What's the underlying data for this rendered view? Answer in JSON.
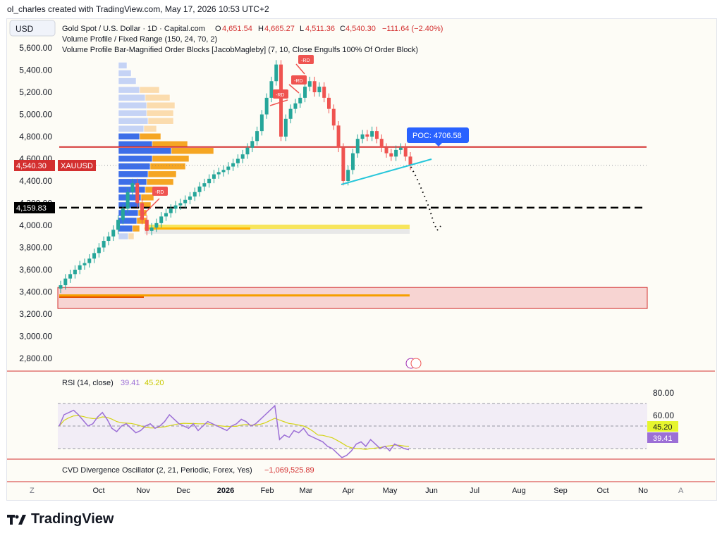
{
  "header": {
    "text": "ol_charles created with TradingView.com, May 17, 2026 10:53 UTC+2"
  },
  "currency_button": "USD",
  "legend": {
    "symbol": "Gold Spot / U.S. Dollar · 1D · Capital.com",
    "o_label": "O",
    "o_value": "4,651.54",
    "h_label": "H",
    "h_value": "4,665.27",
    "l_label": "L",
    "l_value": "4,511.36",
    "c_label": "C",
    "c_value": "4,540.30",
    "change": "−111.64 (−2.40%)",
    "indicator1": "Volume Profile / Fixed Range (150, 24, 70, 2)",
    "indicator2": "Volume Profile Bar-Magnified Order Blocks [JacobMagleby] (7, 10, Close Engulfs 100% Of Order Block)"
  },
  "price_tag": {
    "value": "4,540.30",
    "symbol": "XAUUSD"
  },
  "level_tag": "4,159.83",
  "poc_label": "POC: 4706.58",
  "rd_label": "-RD",
  "rsi": {
    "label": "RSI (14, close)",
    "value1": "39.41",
    "value2": "45.20",
    "ticks": [
      "80.00",
      "60.00"
    ]
  },
  "cvd": {
    "label": "CVD Divergence Oscillator (2, 21, Periodic, Forex, Yes)",
    "value": "−1,069,525.89"
  },
  "footer": {
    "left_btn": "Z",
    "right_btn": "A"
  },
  "logo_text": "TradingView",
  "colors": {
    "up": "#26a69a",
    "down": "#ef5350",
    "rsi": "#9c6fd6",
    "rsi_ma": "#e6e62e",
    "poc": "#2962ff",
    "level": "#d32f2f",
    "trend": "#26c6da"
  },
  "chart_data": {
    "type": "candlestick",
    "y_ticks": [
      "5,600.00",
      "5,400.00",
      "5,200.00",
      "5,000.00",
      "4,800.00",
      "4,600.00",
      "4,400.00",
      "4,200.00",
      "4,000.00",
      "3,800.00",
      "3,600.00",
      "3,400.00",
      "3,200.00",
      "3,000.00",
      "2,800.00"
    ],
    "x_ticks": [
      "Oct",
      "Nov",
      "Dec",
      "2026",
      "Feb",
      "Mar",
      "Apr",
      "May",
      "Jun",
      "Jul",
      "Aug",
      "Sep",
      "Oct",
      "No"
    ],
    "ylim": [
      2720,
      5700
    ],
    "close_series": [
      3460,
      3520,
      3560,
      3600,
      3640,
      3660,
      3700,
      3750,
      3800,
      3860,
      3900,
      3960,
      4050,
      4150,
      4300,
      4380,
      4200,
      4050,
      3950,
      3980,
      4020,
      4080,
      4110,
      4150,
      4180,
      4200,
      4230,
      4260,
      4300,
      4350,
      4380,
      4420,
      4460,
      4480,
      4500,
      4530,
      4560,
      4600,
      4640,
      4700,
      4760,
      4850,
      5000,
      5150,
      5300,
      5450,
      4800,
      4960,
      5050,
      5100,
      5150,
      5250,
      5300,
      5200,
      5250,
      5150,
      5050,
      4900,
      4700,
      4400,
      4500,
      4650,
      4780,
      4820,
      4800,
      4850,
      4780,
      4700,
      4650,
      4620,
      4680,
      4700,
      4620,
      4540
    ],
    "poc_price": 4706.58,
    "level_price": 4159.83,
    "last_price": 4540.3,
    "red_zone": [
      3250,
      3440
    ]
  }
}
